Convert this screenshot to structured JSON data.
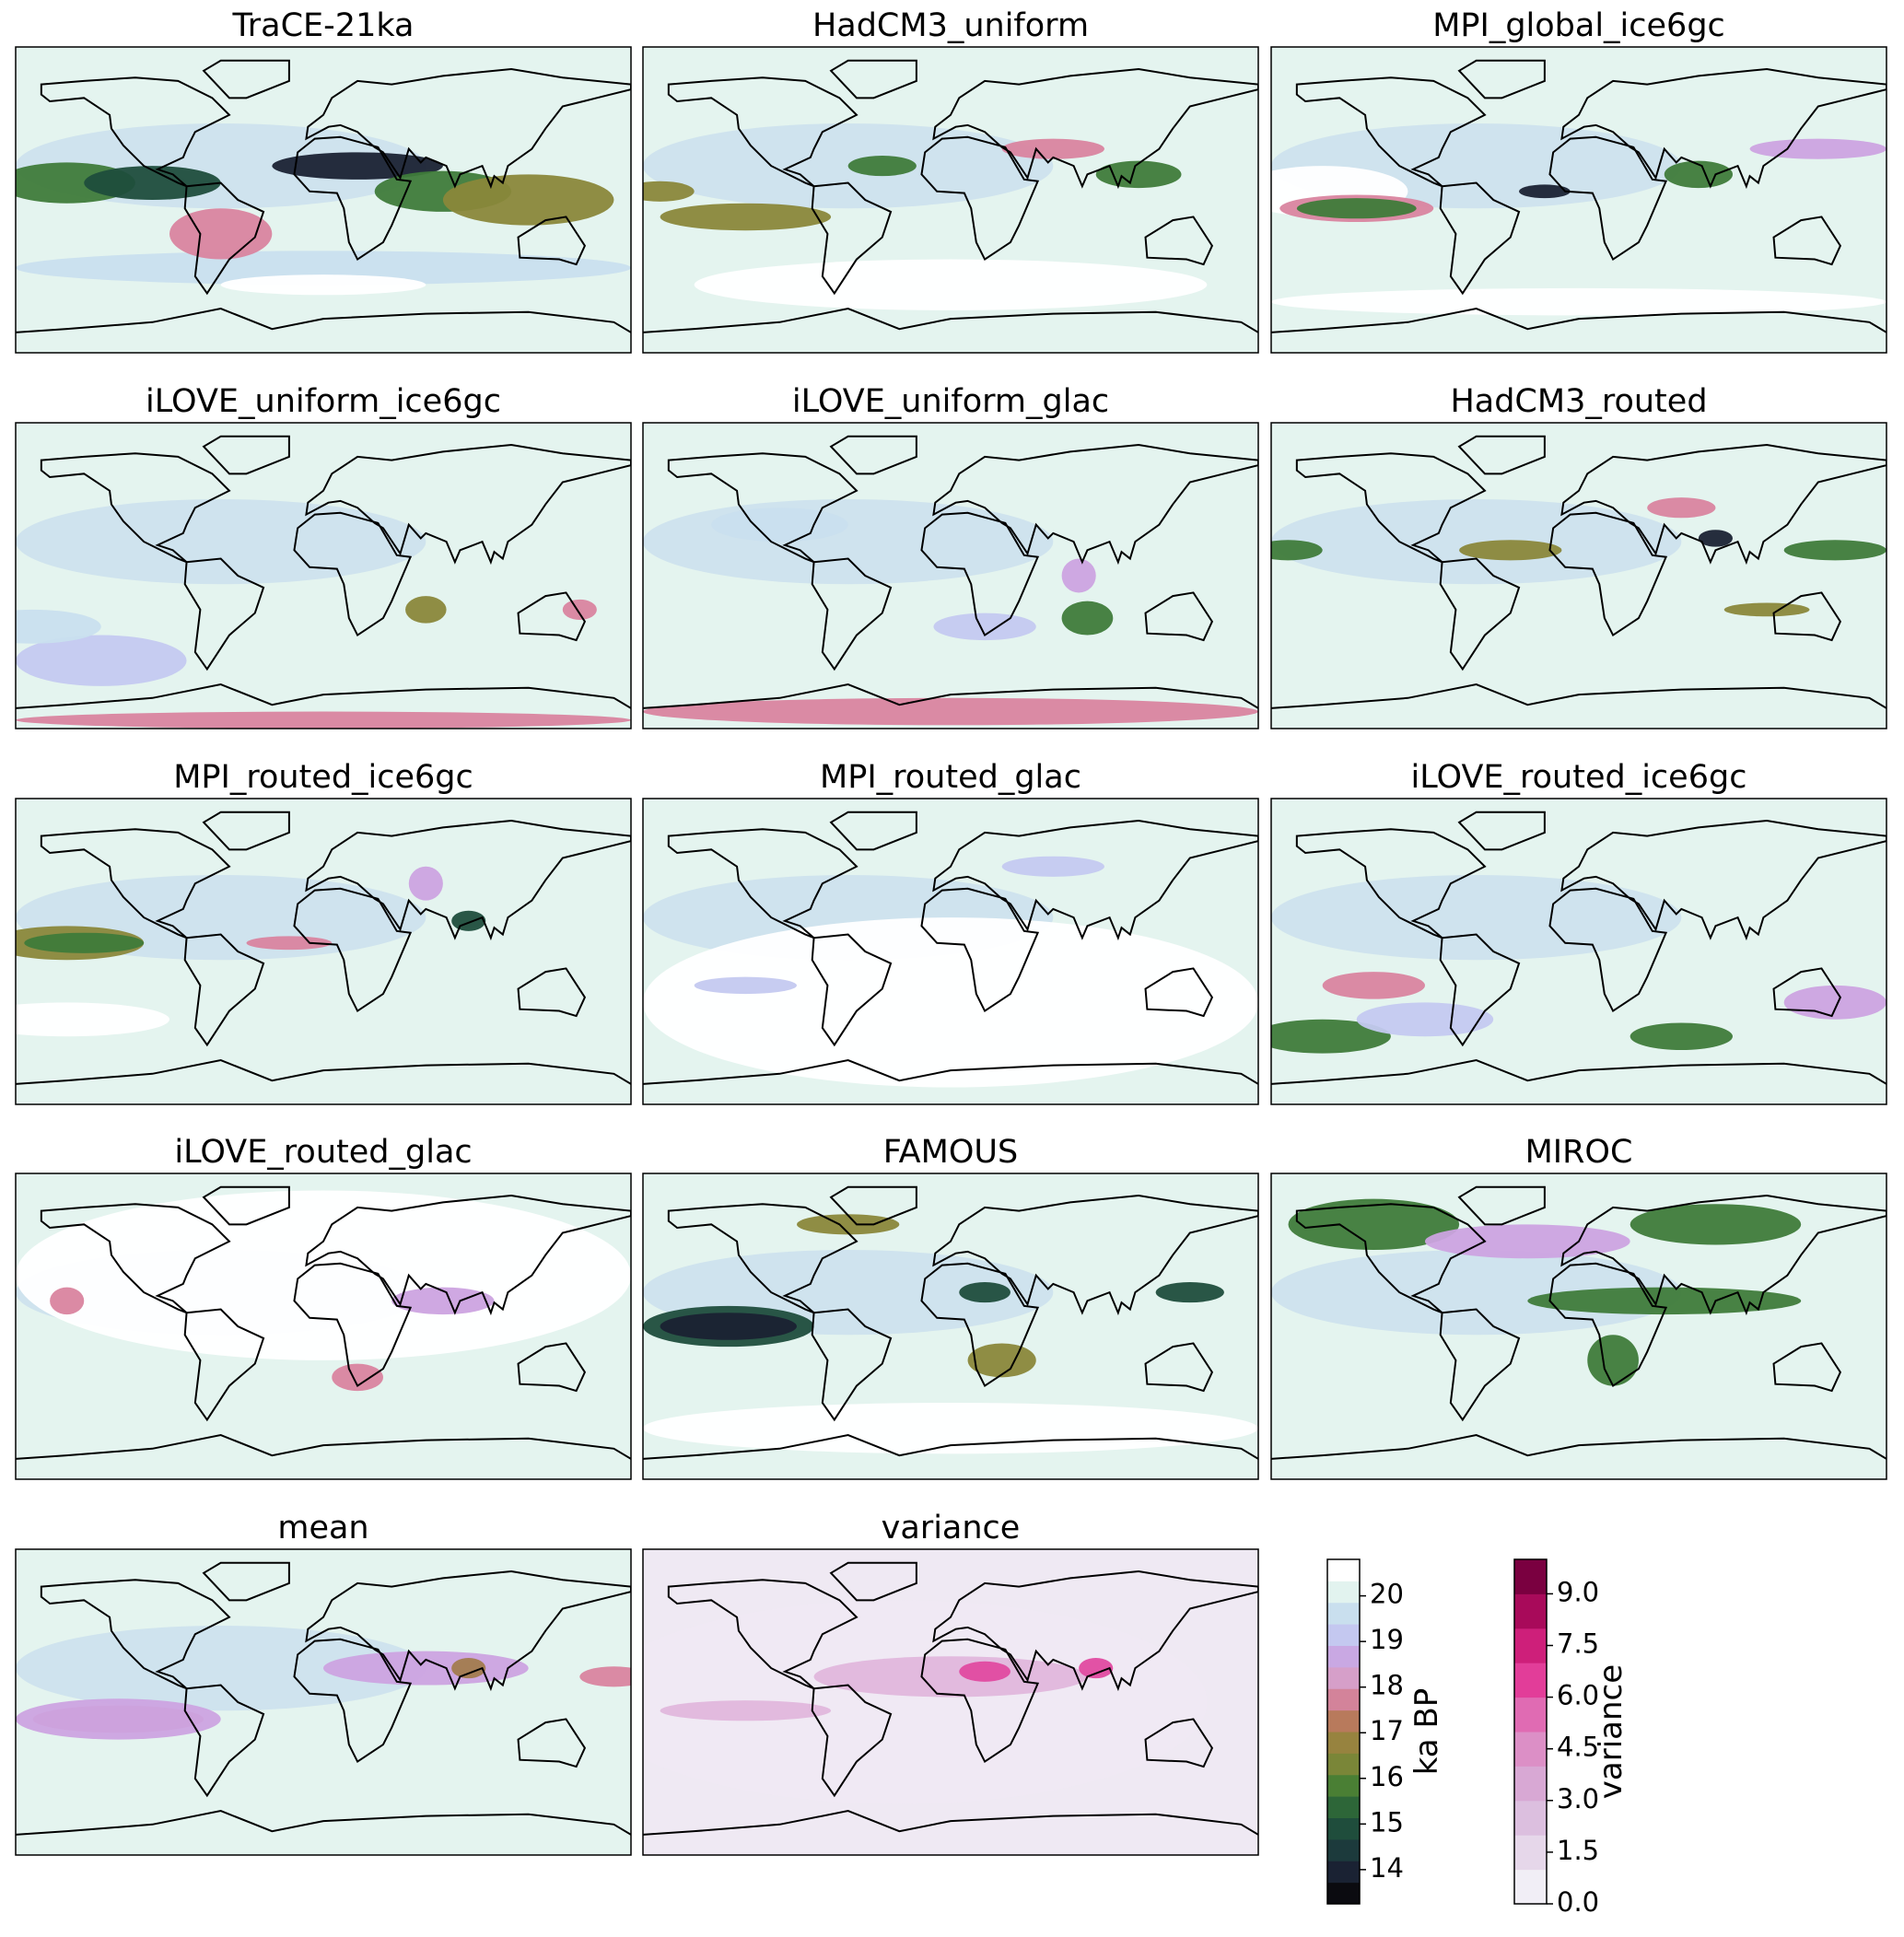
{
  "chart_data": {
    "type": "map",
    "panels": [
      {
        "title": "TraCE-21ka"
      },
      {
        "title": "HadCM3_uniform"
      },
      {
        "title": "MPI_global_ice6gc"
      },
      {
        "title": "iLOVE_uniform_ice6gc"
      },
      {
        "title": "iLOVE_uniform_glac"
      },
      {
        "title": "HadCM3_routed"
      },
      {
        "title": "MPI_routed_ice6gc"
      },
      {
        "title": "MPI_routed_glac"
      },
      {
        "title": "iLOVE_routed_ice6gc"
      },
      {
        "title": "iLOVE_routed_glac"
      },
      {
        "title": "FAMOUS"
      },
      {
        "title": "MIROC"
      },
      {
        "title": "mean"
      },
      {
        "title": "variance"
      }
    ],
    "colorbars": [
      {
        "label": "ka BP",
        "ylim": [
          13.25,
          20.8
        ],
        "yticks": [
          14,
          15,
          16,
          17,
          18,
          19,
          20
        ],
        "colors": [
          "#0b0b10",
          "#1a2233",
          "#1c3a3c",
          "#1f4d3c",
          "#2d6638",
          "#4a7f34",
          "#7a8638",
          "#97833f",
          "#b87a5c",
          "#d3839a",
          "#d69fc9",
          "#c9a8e3",
          "#c4c8f0",
          "#c9dfee",
          "#e2f3ef",
          "#ffffff"
        ]
      },
      {
        "label": "variance",
        "ylim": [
          0,
          10
        ],
        "yticks": [
          {
            "value": 0,
            "label": "0.0"
          },
          {
            "value": 1.5,
            "label": "1.5"
          },
          {
            "value": 3,
            "label": "3.0"
          },
          {
            "value": 4.5,
            "label": "4.5"
          },
          {
            "value": 6,
            "label": "6.0"
          },
          {
            "value": 7.5,
            "label": "7.5"
          },
          {
            "value": 9,
            "label": "9.0"
          }
        ],
        "colors": [
          "#f1eef6",
          "#e6d7ea",
          "#dcbfdf",
          "#d8a8d4",
          "#dc8fc6",
          "#e06bb3",
          "#e23d99",
          "#ce1f7a",
          "#a80a5a",
          "#7a0040"
        ]
      }
    ]
  }
}
